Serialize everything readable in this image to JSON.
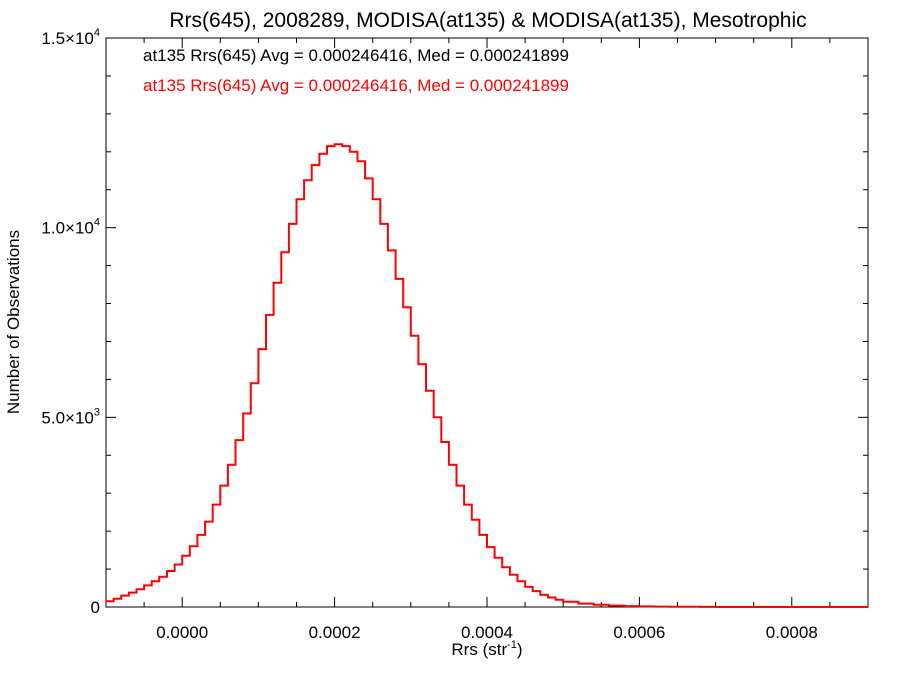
{
  "chart_data": {
    "type": "histogram",
    "title": "Rrs(645), 2008289, MODISA(at135) & MODISA(at135), Mesotrophic",
    "xlabel": "Rrs (str",
    "xlabel_sup": "-1",
    "xlabel_close": ")",
    "ylabel": "Number of Observations",
    "xlim": [
      -0.0001,
      0.0009
    ],
    "ylim": [
      0,
      15000
    ],
    "x_ticks": [
      {
        "value": 0.0,
        "label": "0.0000"
      },
      {
        "value": 0.0002,
        "label": "0.0002"
      },
      {
        "value": 0.0004,
        "label": "0.0004"
      },
      {
        "value": 0.0006,
        "label": "0.0006"
      },
      {
        "value": 0.0008,
        "label": "0.0008"
      }
    ],
    "y_ticks": [
      {
        "value": 0,
        "mant": "0",
        "exp": ""
      },
      {
        "value": 5000,
        "mant": "5.0×10",
        "exp": "3"
      },
      {
        "value": 10000,
        "mant": "1.0×10",
        "exp": "4"
      },
      {
        "value": 15000,
        "mant": "1.5×10",
        "exp": "4"
      }
    ],
    "annotations": [
      {
        "text": "at135 Rrs(645) Avg = 0.000246416, Med = 0.000241899",
        "color": "#000000"
      },
      {
        "text": "at135 Rrs(645) Avg = 0.000246416, Med = 0.000241899",
        "color": "#ff0000"
      }
    ],
    "series": [
      {
        "color": "#ff0000",
        "x": [
          -0.0001,
          -9e-05,
          -8e-05,
          -7e-05,
          -6e-05,
          -5e-05,
          -4e-05,
          -3e-05,
          -2e-05,
          -1e-05,
          0.0,
          1e-05,
          2e-05,
          3e-05,
          4e-05,
          5e-05,
          6e-05,
          7e-05,
          8e-05,
          9e-05,
          0.0001,
          0.00011,
          0.00012,
          0.00013,
          0.00014,
          0.00015,
          0.00016,
          0.00017,
          0.00018,
          0.00019,
          0.0002,
          0.00021,
          0.00022,
          0.00023,
          0.00024,
          0.00025,
          0.00026,
          0.00027,
          0.00028,
          0.00029,
          0.0003,
          0.00031,
          0.00032,
          0.00033,
          0.00034,
          0.00035,
          0.00036,
          0.00037,
          0.00038,
          0.00039,
          0.0004,
          0.00041,
          0.00042,
          0.00043,
          0.00044,
          0.00045,
          0.00046,
          0.00047,
          0.00048,
          0.00049,
          0.0005,
          0.00052,
          0.00054,
          0.00056,
          0.00058,
          0.0006,
          0.00062,
          0.00064,
          0.00066,
          0.00068,
          0.0007,
          0.00073,
          0.00076,
          0.0008,
          0.00084,
          0.0009
        ],
        "y": [
          150,
          220,
          300,
          380,
          470,
          570,
          680,
          800,
          950,
          1120,
          1350,
          1600,
          1900,
          2250,
          2700,
          3200,
          3750,
          4400,
          5100,
          5900,
          6800,
          7700,
          8550,
          9350,
          10100,
          10750,
          11250,
          11650,
          11950,
          12150,
          12200,
          12150,
          12000,
          11750,
          11300,
          10750,
          10100,
          9400,
          8650,
          7900,
          7150,
          6400,
          5700,
          5000,
          4350,
          3750,
          3200,
          2700,
          2300,
          1900,
          1580,
          1300,
          1050,
          850,
          680,
          530,
          420,
          320,
          250,
          190,
          140,
          90,
          60,
          38,
          25,
          15,
          10,
          6,
          4,
          2,
          1,
          0,
          0,
          0,
          0,
          0
        ]
      }
    ]
  }
}
